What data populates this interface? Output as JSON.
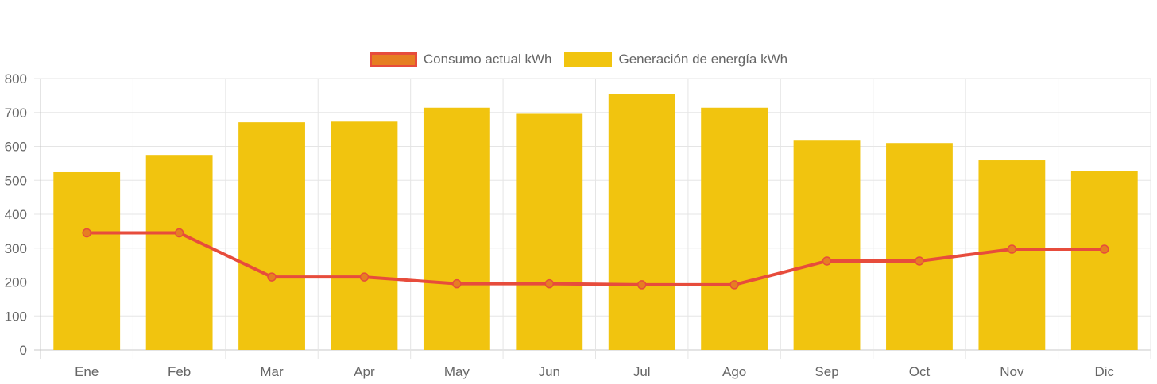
{
  "chart_data": {
    "type": "bar",
    "categories": [
      "Ene",
      "Feb",
      "Mar",
      "Apr",
      "May",
      "Jun",
      "Jul",
      "Ago",
      "Sep",
      "Oct",
      "Nov",
      "Dic"
    ],
    "series": [
      {
        "name": "Consumo actual kWh",
        "type": "line",
        "color": "#e74c3c",
        "point_fill": "#e67e22",
        "values": [
          345,
          345,
          215,
          215,
          195,
          195,
          192,
          192,
          262,
          262,
          297,
          297
        ]
      },
      {
        "name": "Generación de energía kWh",
        "type": "bar",
        "color": "#f1c40f",
        "values": [
          524,
          575,
          671,
          673,
          714,
          696,
          755,
          714,
          617,
          610,
          559,
          527
        ]
      }
    ],
    "yticks": [
      "0",
      "100",
      "200",
      "300",
      "400",
      "500",
      "600",
      "700",
      "800"
    ],
    "ylim": [
      0,
      800
    ],
    "grid": true,
    "legend_position": "top"
  }
}
